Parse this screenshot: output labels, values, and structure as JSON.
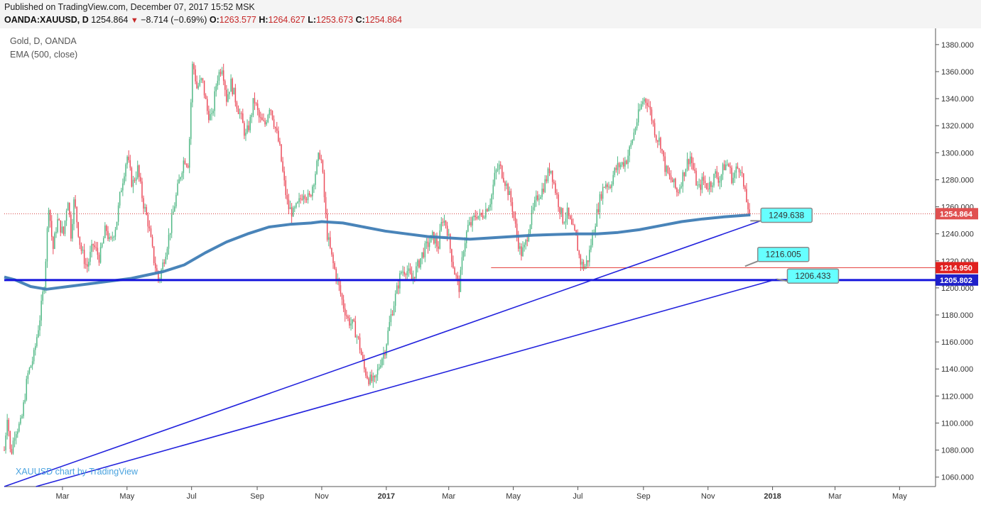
{
  "header": {
    "published": "Published on TradingView.com, December 07, 2017 15:52 MSK",
    "symbol": "OANDA:XAUUSD, D",
    "last": "1254.864",
    "change": "−8.714 (−0.69%)",
    "o_label": "O:",
    "o": "1263.577",
    "h_label": "H:",
    "h": "1264.627",
    "l_label": "L:",
    "l": "1253.673",
    "c_label": "C:",
    "c": "1254.864"
  },
  "legend": {
    "title": "Gold, D, OANDA",
    "indicator": "EMA (500, close)"
  },
  "watermark": "XAUUSD chart by TradingView",
  "chart_data": {
    "type": "candlestick",
    "y_ticks": [
      1060,
      1080,
      1100,
      1120,
      1140,
      1160,
      1180,
      1200,
      1220,
      1240,
      1260,
      1280,
      1300,
      1320,
      1340,
      1360,
      1380
    ],
    "ylim": [
      1053,
      1392
    ],
    "x_ticks": [
      {
        "label": "Mar",
        "day": 55
      },
      {
        "label": "May",
        "day": 116
      },
      {
        "label": "Jul",
        "day": 177
      },
      {
        "label": "Sep",
        "day": 239
      },
      {
        "label": "Nov",
        "day": 300
      },
      {
        "label": "2017",
        "day": 361
      },
      {
        "label": "Mar",
        "day": 420
      },
      {
        "label": "May",
        "day": 481
      },
      {
        "label": "Jul",
        "day": 542
      },
      {
        "label": "Sep",
        "day": 604
      },
      {
        "label": "Nov",
        "day": 665
      },
      {
        "label": "2018",
        "day": 726
      },
      {
        "label": "Mar",
        "day": 785
      },
      {
        "label": "May",
        "day": 846
      }
    ],
    "xlim": [
      0,
      880
    ],
    "last_day": 705,
    "price_path": [
      [
        0,
        1080
      ],
      [
        3,
        1108
      ],
      [
        6,
        1075
      ],
      [
        10,
        1094
      ],
      [
        16,
        1100
      ],
      [
        22,
        1135
      ],
      [
        28,
        1150
      ],
      [
        34,
        1180
      ],
      [
        38,
        1205
      ],
      [
        42,
        1262
      ],
      [
        46,
        1228
      ],
      [
        50,
        1250
      ],
      [
        56,
        1240
      ],
      [
        60,
        1268
      ],
      [
        63,
        1240
      ],
      [
        66,
        1265
      ],
      [
        72,
        1230
      ],
      [
        78,
        1215
      ],
      [
        84,
        1232
      ],
      [
        90,
        1222
      ],
      [
        96,
        1245
      ],
      [
        100,
        1232
      ],
      [
        106,
        1248
      ],
      [
        110,
        1272
      ],
      [
        116,
        1298
      ],
      [
        121,
        1276
      ],
      [
        126,
        1288
      ],
      [
        131,
        1264
      ],
      [
        136,
        1248
      ],
      [
        141,
        1222
      ],
      [
        146,
        1205
      ],
      [
        150,
        1218
      ],
      [
        156,
        1240
      ],
      [
        161,
        1262
      ],
      [
        166,
        1282
      ],
      [
        170,
        1296
      ],
      [
        174,
        1292
      ],
      [
        178,
        1368
      ],
      [
        182,
        1348
      ],
      [
        187,
        1354
      ],
      [
        192,
        1330
      ],
      [
        196,
        1325
      ],
      [
        201,
        1355
      ],
      [
        206,
        1365
      ],
      [
        210,
        1340
      ],
      [
        214,
        1352
      ],
      [
        219,
        1338
      ],
      [
        224,
        1325
      ],
      [
        228,
        1312
      ],
      [
        232,
        1322
      ],
      [
        236,
        1340
      ],
      [
        241,
        1325
      ],
      [
        246,
        1320
      ],
      [
        251,
        1336
      ],
      [
        255,
        1322
      ],
      [
        260,
        1305
      ],
      [
        264,
        1280
      ],
      [
        268,
        1260
      ],
      [
        273,
        1255
      ],
      [
        278,
        1262
      ],
      [
        283,
        1272
      ],
      [
        288,
        1265
      ],
      [
        293,
        1282
      ],
      [
        298,
        1300
      ],
      [
        300,
        1292
      ],
      [
        305,
        1240
      ],
      [
        310,
        1220
      ],
      [
        315,
        1205
      ],
      [
        320,
        1188
      ],
      [
        325,
        1176
      ],
      [
        330,
        1172
      ],
      [
        335,
        1160
      ],
      [
        340,
        1140
      ],
      [
        345,
        1132
      ],
      [
        350,
        1130
      ],
      [
        355,
        1145
      ],
      [
        360,
        1155
      ],
      [
        365,
        1178
      ],
      [
        370,
        1195
      ],
      [
        375,
        1212
      ],
      [
        380,
        1214
      ],
      [
        385,
        1206
      ],
      [
        390,
        1215
      ],
      [
        395,
        1225
      ],
      [
        400,
        1232
      ],
      [
        405,
        1238
      ],
      [
        410,
        1230
      ],
      [
        414,
        1252
      ],
      [
        418,
        1246
      ],
      [
        422,
        1226
      ],
      [
        426,
        1210
      ],
      [
        430,
        1200
      ],
      [
        434,
        1230
      ],
      [
        438,
        1245
      ],
      [
        442,
        1248
      ],
      [
        446,
        1255
      ],
      [
        450,
        1252
      ],
      [
        455,
        1258
      ],
      [
        460,
        1266
      ],
      [
        464,
        1285
      ],
      [
        468,
        1290
      ],
      [
        472,
        1282
      ],
      [
        476,
        1272
      ],
      [
        480,
        1260
      ],
      [
        484,
        1240
      ],
      [
        488,
        1225
      ],
      [
        492,
        1230
      ],
      [
        496,
        1246
      ],
      [
        500,
        1258
      ],
      [
        504,
        1268
      ],
      [
        508,
        1272
      ],
      [
        512,
        1280
      ],
      [
        516,
        1290
      ],
      [
        520,
        1275
      ],
      [
        524,
        1262
      ],
      [
        528,
        1250
      ],
      [
        532,
        1255
      ],
      [
        536,
        1245
      ],
      [
        540,
        1238
      ],
      [
        544,
        1220
      ],
      [
        548,
        1215
      ],
      [
        552,
        1222
      ],
      [
        556,
        1240
      ],
      [
        560,
        1255
      ],
      [
        564,
        1270
      ],
      [
        568,
        1278
      ],
      [
        572,
        1275
      ],
      [
        576,
        1285
      ],
      [
        580,
        1290
      ],
      [
        584,
        1292
      ],
      [
        588,
        1295
      ],
      [
        592,
        1305
      ],
      [
        596,
        1318
      ],
      [
        600,
        1330
      ],
      [
        604,
        1340
      ],
      [
        608,
        1338
      ],
      [
        612,
        1325
      ],
      [
        616,
        1312
      ],
      [
        620,
        1308
      ],
      [
        624,
        1290
      ],
      [
        628,
        1282
      ],
      [
        632,
        1278
      ],
      [
        636,
        1270
      ],
      [
        640,
        1280
      ],
      [
        644,
        1290
      ],
      [
        648,
        1298
      ],
      [
        652,
        1284
      ],
      [
        656,
        1272
      ],
      [
        660,
        1280
      ],
      [
        664,
        1275
      ],
      [
        668,
        1278
      ],
      [
        672,
        1284
      ],
      [
        676,
        1280
      ],
      [
        680,
        1290
      ],
      [
        684,
        1292
      ],
      [
        688,
        1280
      ],
      [
        692,
        1288
      ],
      [
        696,
        1290
      ],
      [
        699,
        1272
      ],
      [
        702,
        1262
      ],
      [
        705,
        1254.9
      ]
    ],
    "ema": [
      [
        0,
        1208
      ],
      [
        10,
        1206
      ],
      [
        25,
        1201
      ],
      [
        40,
        1199
      ],
      [
        60,
        1201
      ],
      [
        90,
        1204
      ],
      [
        120,
        1207
      ],
      [
        150,
        1212
      ],
      [
        170,
        1217
      ],
      [
        190,
        1226
      ],
      [
        210,
        1234
      ],
      [
        230,
        1240
      ],
      [
        250,
        1245
      ],
      [
        270,
        1247
      ],
      [
        290,
        1248
      ],
      [
        300,
        1249
      ],
      [
        320,
        1248
      ],
      [
        340,
        1245
      ],
      [
        360,
        1242
      ],
      [
        380,
        1240
      ],
      [
        400,
        1238
      ],
      [
        420,
        1237
      ],
      [
        440,
        1236
      ],
      [
        460,
        1237
      ],
      [
        480,
        1238
      ],
      [
        500,
        1239
      ],
      [
        520,
        1239.5
      ],
      [
        540,
        1240
      ],
      [
        560,
        1240
      ],
      [
        580,
        1241
      ],
      [
        600,
        1243
      ],
      [
        620,
        1246
      ],
      [
        640,
        1249
      ],
      [
        660,
        1251
      ],
      [
        680,
        1252.5
      ],
      [
        705,
        1254
      ]
    ],
    "horizontal_lines": [
      {
        "price": 1254.864,
        "style": "dotted",
        "color": "#d84343",
        "label": "1254.864",
        "label_bg": "#e05050"
      },
      {
        "price": 1214.95,
        "from_day": 460,
        "color": "#e53935",
        "label": "1214.950",
        "label_bg": "#e0211f"
      },
      {
        "price": 1205.802,
        "color": "#1414dc",
        "width": 3,
        "label": "1205.802",
        "label_bg": "#1f20c9"
      }
    ],
    "trend_lines": [
      {
        "points": [
          [
            0,
            1053
          ],
          [
            715,
            1249.638
          ]
        ],
        "color": "#2222dd"
      },
      {
        "points": [
          [
            30,
            1053
          ],
          [
            730,
            1206.433
          ]
        ],
        "color": "#2222dd"
      }
    ],
    "callouts": [
      {
        "label": "1249.638",
        "anchor_day": 705,
        "anchor_price": 1249.638,
        "box_day": 715,
        "box_price": 1259
      },
      {
        "label": "1216.005",
        "anchor_day": 700,
        "anchor_price": 1216.005,
        "box_day": 712,
        "box_price": 1230
      },
      {
        "label": "1206.433",
        "anchor_day": 730,
        "anchor_price": 1206.433,
        "box_day": 740,
        "box_price": 1214
      }
    ],
    "colors": {
      "up": "#53b987",
      "down": "#eb4d5c",
      "ema": "#3f7db5",
      "axis": "#555555",
      "callout": "#66ffff"
    }
  }
}
